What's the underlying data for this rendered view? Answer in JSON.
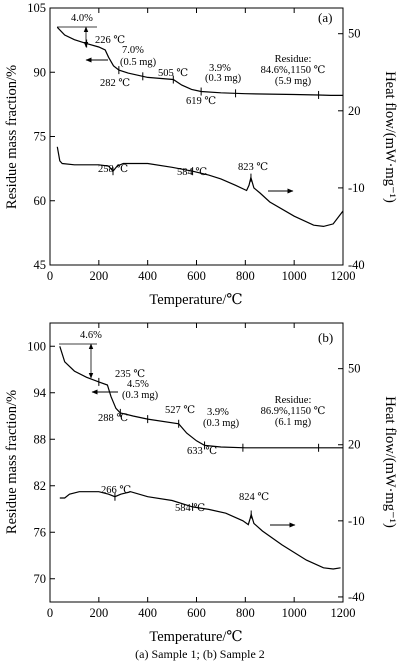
{
  "caption": "(a)  Sample 1; (b) Sample 2",
  "chart_data": [
    {
      "type": "line",
      "panel_label": "(a)",
      "xlabel": "Temperature/℃",
      "ylabel": "Residue mass fraction/%",
      "y2label": "Heat flow/(mW·mg⁻¹)",
      "xlim": [
        0,
        1200
      ],
      "ylim": [
        45,
        105
      ],
      "y2lim": [
        -40,
        60
      ],
      "xticks": [
        0,
        200,
        400,
        600,
        800,
        1000,
        1200
      ],
      "yticks": [
        45,
        60,
        75,
        90,
        105
      ],
      "y2ticks": [
        -40,
        -10,
        20,
        50
      ],
      "series": [
        {
          "axis": "left",
          "points": [
            [
              30,
              100.5
            ],
            [
              60,
              98.7
            ],
            [
              100,
              97.6
            ],
            [
              150,
              96.7
            ],
            [
              200,
              95.9
            ],
            [
              226,
              95.2
            ],
            [
              240,
              93.5
            ],
            [
              260,
              91.5
            ],
            [
              282,
              90.5
            ],
            [
              320,
              89.8
            ],
            [
              400,
              88.8
            ],
            [
              505,
              88.3
            ],
            [
              540,
              87.0
            ],
            [
              580,
              86.0
            ],
            [
              619,
              85.5
            ],
            [
              700,
              85.2
            ],
            [
              800,
              85.0
            ],
            [
              900,
              84.9
            ],
            [
              1000,
              84.8
            ],
            [
              1100,
              84.7
            ],
            [
              1150,
              84.6
            ],
            [
              1200,
              84.6
            ]
          ]
        },
        {
          "axis": "right",
          "points": [
            [
              30,
              6.0
            ],
            [
              40,
              0.5
            ],
            [
              50,
              -0.5
            ],
            [
              100,
              -1.0
            ],
            [
              200,
              -1.0
            ],
            [
              240,
              -1.5
            ],
            [
              258,
              -3.5
            ],
            [
              275,
              -1.5
            ],
            [
              300,
              -0.5
            ],
            [
              400,
              -0.5
            ],
            [
              500,
              -2.0
            ],
            [
              584,
              -3.5
            ],
            [
              650,
              -5.0
            ],
            [
              700,
              -6.5
            ],
            [
              760,
              -9.0
            ],
            [
              805,
              -11.0
            ],
            [
              815,
              -9.0
            ],
            [
              823,
              -6.0
            ],
            [
              835,
              -10.0
            ],
            [
              860,
              -12.0
            ],
            [
              900,
              -15.5
            ],
            [
              1000,
              -21.0
            ],
            [
              1080,
              -24.5
            ],
            [
              1120,
              -25.0
            ],
            [
              1160,
              -24.0
            ],
            [
              1200,
              -19.0
            ]
          ]
        }
      ],
      "annotations": {
        "t1": "226 ℃",
        "t2": "282 ℃",
        "t3": "505 ℃",
        "t4": "619 ℃",
        "t5": "258 ℃",
        "t6": "584 ℃",
        "t7": "823 ℃",
        "loss1": "4.0%",
        "loss2a": "7.0%",
        "loss2b": "(0.5 mg)",
        "loss3a": "3.9%",
        "loss3b": "(0.3 mg)",
        "res1": "Residue:",
        "res2": "84.6%,1150 ℃",
        "res3": "(5.9 mg)"
      }
    },
    {
      "type": "line",
      "panel_label": "(b)",
      "xlabel": "Temperature/℃",
      "ylabel": "Residue mass fraction/%",
      "y2label": "Heat flow/(mW·mg⁻¹)",
      "xlim": [
        0,
        1200
      ],
      "ylim": [
        67,
        103
      ],
      "y2lim": [
        -42,
        68
      ],
      "xticks": [
        0,
        200,
        400,
        600,
        800,
        1000,
        1200
      ],
      "yticks": [
        70,
        76,
        82,
        88,
        94,
        100
      ],
      "y2ticks": [
        -40,
        -10,
        20,
        50
      ],
      "series": [
        {
          "axis": "left",
          "points": [
            [
              40,
              100.0
            ],
            [
              60,
              98.0
            ],
            [
              100,
              96.8
            ],
            [
              150,
              96.0
            ],
            [
              200,
              95.4
            ],
            [
              235,
              95.0
            ],
            [
              250,
              93.5
            ],
            [
              270,
              92.0
            ],
            [
              288,
              91.4
            ],
            [
              340,
              91.0
            ],
            [
              400,
              90.6
            ],
            [
              527,
              90.0
            ],
            [
              560,
              88.8
            ],
            [
              600,
              87.8
            ],
            [
              633,
              87.2
            ],
            [
              700,
              87.0
            ],
            [
              800,
              86.9
            ],
            [
              900,
              86.9
            ],
            [
              1000,
              86.9
            ],
            [
              1100,
              86.9
            ],
            [
              1150,
              86.9
            ],
            [
              1200,
              86.9
            ]
          ]
        },
        {
          "axis": "right",
          "points": [
            [
              40,
              -1.0
            ],
            [
              60,
              -1.0
            ],
            [
              80,
              0.5
            ],
            [
              120,
              1.5
            ],
            [
              200,
              1.5
            ],
            [
              240,
              0.5
            ],
            [
              266,
              -0.5
            ],
            [
              290,
              0.5
            ],
            [
              330,
              1.5
            ],
            [
              400,
              -0.5
            ],
            [
              500,
              -2.0
            ],
            [
              584,
              -4.5
            ],
            [
              650,
              -5.5
            ],
            [
              720,
              -7.0
            ],
            [
              790,
              -10.0
            ],
            [
              812,
              -11.5
            ],
            [
              820,
              -9.0
            ],
            [
              824,
              -7.5
            ],
            [
              835,
              -11.0
            ],
            [
              870,
              -14.0
            ],
            [
              950,
              -19.5
            ],
            [
              1050,
              -25.5
            ],
            [
              1120,
              -28.5
            ],
            [
              1160,
              -29.0
            ],
            [
              1190,
              -28.5
            ]
          ]
        }
      ],
      "annotations": {
        "t1": "235 ℃",
        "t2": "288 ℃",
        "t3": "527 ℃",
        "t4": "633 ℃",
        "t5": "266 ℃",
        "t6": "584 ℃",
        "t7": "824 ℃",
        "loss1": "4.6%",
        "loss2a": "4.5%",
        "loss2b": "(0.3 mg)",
        "loss3a": "3.9%",
        "loss3b": "(0.3 mg)",
        "res1": "Residue:",
        "res2": "86.9%,1150 ℃",
        "res3": "(6.1 mg)"
      }
    }
  ]
}
